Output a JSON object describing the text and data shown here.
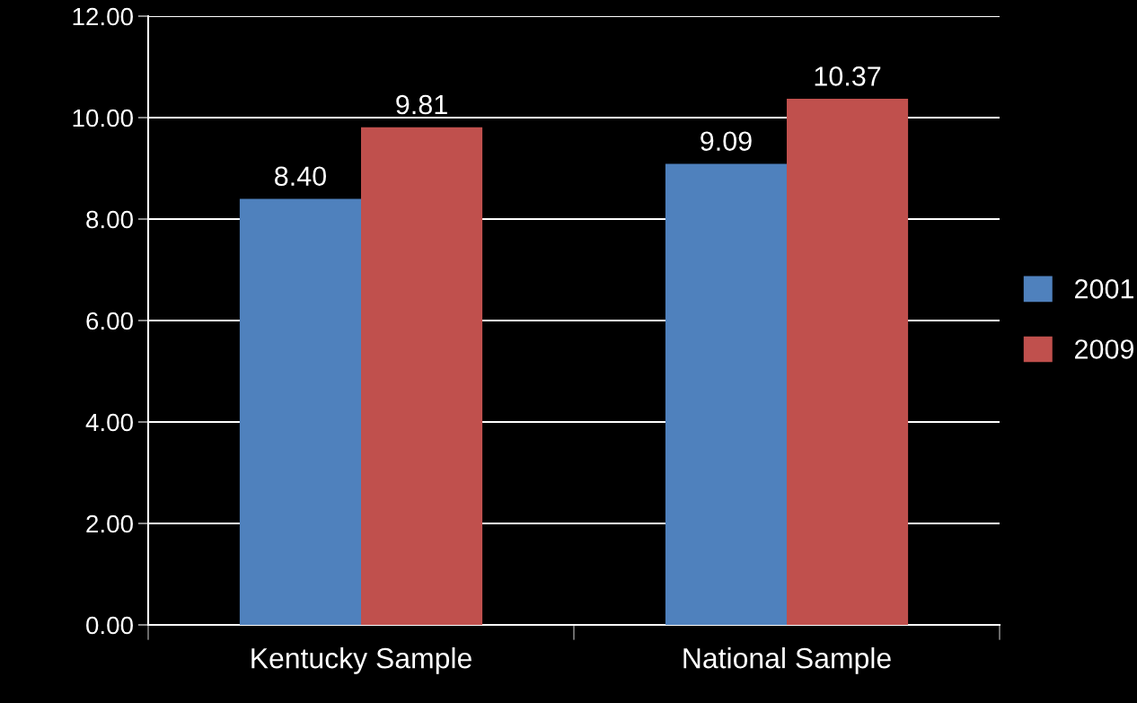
{
  "chart_data": {
    "type": "bar",
    "categories": [
      "Kentucky Sample",
      "National Sample"
    ],
    "series": [
      {
        "name": "2001",
        "color": "#4f81bd",
        "values": [
          8.4,
          9.09
        ],
        "value_labels": [
          "8.40",
          "9.09"
        ]
      },
      {
        "name": "2009",
        "color": "#c0504d",
        "values": [
          9.81,
          10.37
        ],
        "value_labels": [
          "9.81",
          "10.37"
        ]
      }
    ],
    "ylim": [
      0,
      12
    ],
    "yticks": [
      {
        "value": 0,
        "label": "0.00"
      },
      {
        "value": 2,
        "label": "2.00"
      },
      {
        "value": 4,
        "label": "4.00"
      },
      {
        "value": 6,
        "label": "6.00"
      },
      {
        "value": 8,
        "label": "8.00"
      },
      {
        "value": 10,
        "label": "10.00"
      },
      {
        "value": 12,
        "label": "12.00"
      }
    ],
    "grid": "y",
    "legend": "right"
  }
}
